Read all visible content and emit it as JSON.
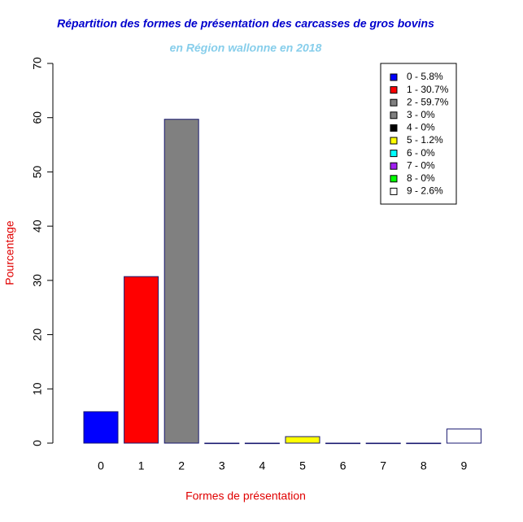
{
  "chart_data": {
    "type": "bar",
    "title": "Répartition des formes de présentation des carcasses de gros bovins",
    "subtitle": "en Région wallonne en 2018",
    "x_label": "Formes de présentation",
    "y_label": "Pourcentage",
    "categories": [
      "0",
      "1",
      "2",
      "3",
      "4",
      "5",
      "6",
      "7",
      "8",
      "9"
    ],
    "values": [
      5.8,
      30.7,
      59.7,
      0,
      0,
      1.2,
      0,
      0,
      0,
      2.6
    ],
    "colors": [
      "#0000ff",
      "#ff0000",
      "#808080",
      "#808080",
      "#000000",
      "#ffff00",
      "#00ffff",
      "#a020f0",
      "#00ff00",
      "#ffffff"
    ],
    "border_color": "#191970",
    "legend": [
      "0 - 5.8%",
      "1 - 30.7%",
      "2 - 59.7%",
      "3 - 0%",
      "4 - 0%",
      "5 - 1.2%",
      "6 - 0%",
      "7 - 0%",
      "8 - 0%",
      "9 - 2.6%"
    ],
    "legend_position": "top-right",
    "ylim": [
      0,
      70
    ],
    "yticks": [
      0,
      10,
      20,
      30,
      40,
      50,
      60,
      70
    ]
  }
}
